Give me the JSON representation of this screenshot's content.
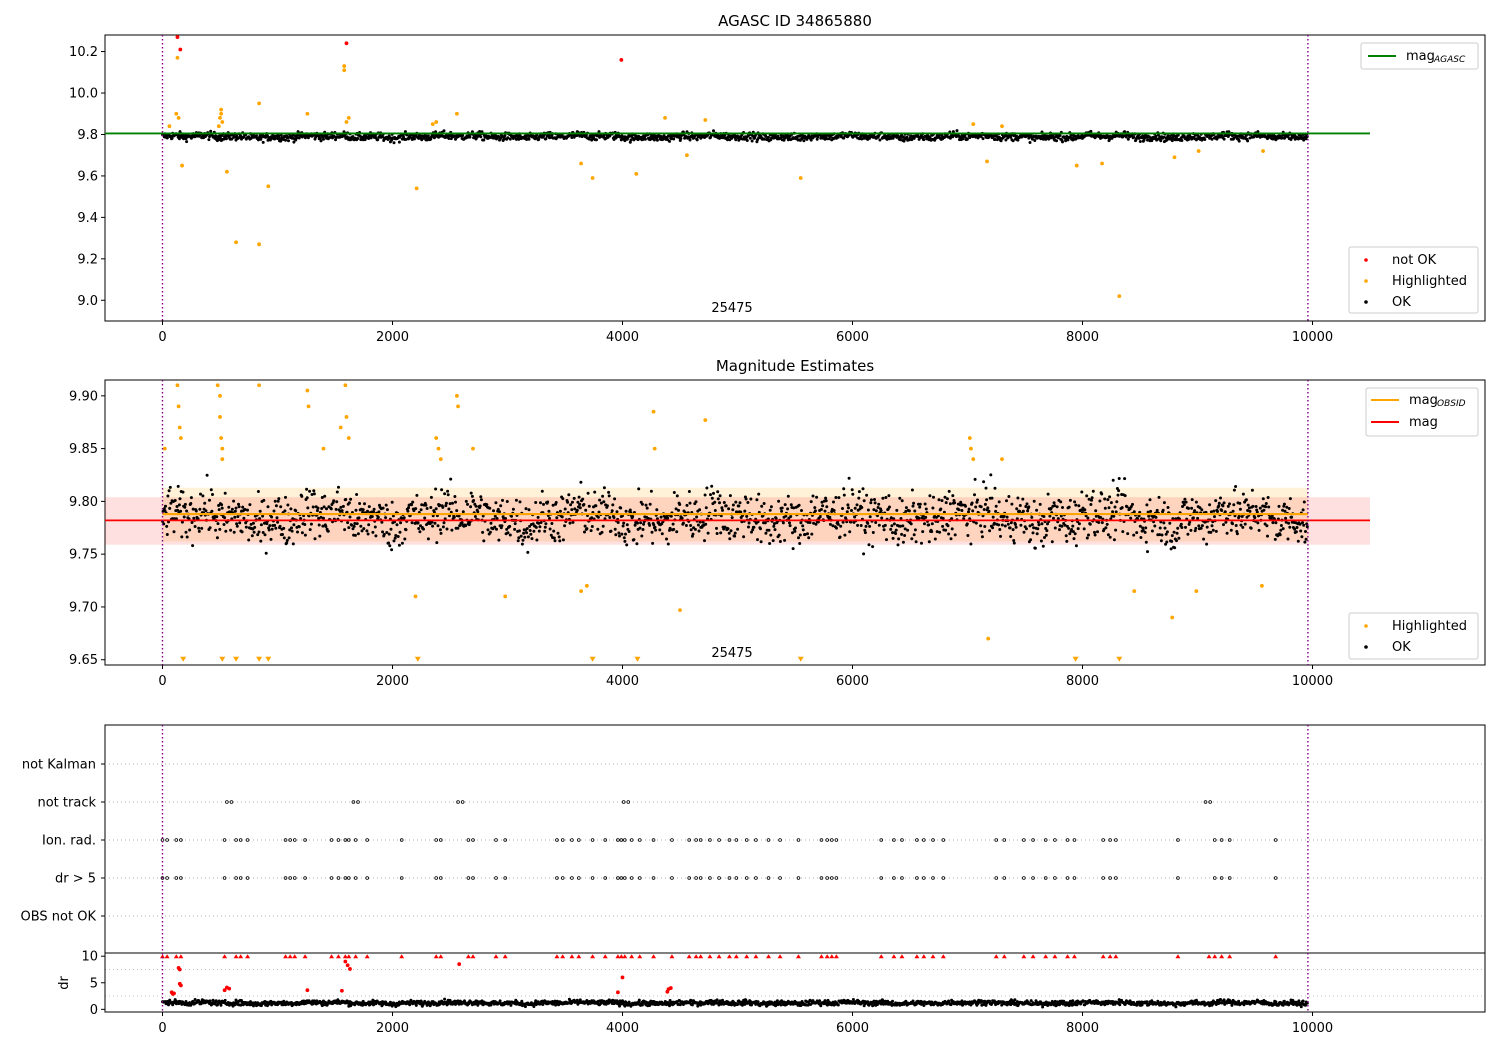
{
  "chart_data": [
    {
      "type": "scatter",
      "title": "AGASC ID 34865880",
      "xlim": [
        -500,
        11500
      ],
      "ylim": [
        8.9,
        10.28
      ],
      "xticks": [
        0,
        2000,
        4000,
        6000,
        8000,
        10000
      ],
      "yticks": [
        9.0,
        9.2,
        9.4,
        9.6,
        9.8,
        10.0,
        10.2
      ],
      "ytick_labels": [
        "9.0",
        "9.2",
        "9.4",
        "9.6",
        "9.8",
        "10.0",
        "10.2"
      ],
      "vlines": [
        0,
        9960
      ],
      "annotation": {
        "text": "25475",
        "x": 5000,
        "y": 8.95
      },
      "lines": [
        {
          "name": "mag",
          "subscript": "AGASC",
          "color": "#008000",
          "x": [
            -500,
            10500
          ],
          "y": [
            9.805,
            9.805
          ]
        }
      ],
      "series": [
        {
          "name": "not OK",
          "color": "#ff0000",
          "points": [
            [
              130,
              10.27
            ],
            [
              155,
              10.21
            ],
            [
              1600,
              10.24
            ],
            [
              3990,
              10.16
            ]
          ]
        },
        {
          "name": "Highlighted",
          "color": "#ffa500",
          "points": [
            [
              130,
              10.17
            ],
            [
              170,
              9.65
            ],
            [
              560,
              9.62
            ],
            [
              640,
              9.28
            ],
            [
              840,
              9.27
            ],
            [
              840,
              9.95
            ],
            [
              920,
              9.55
            ],
            [
              1260,
              9.9
            ],
            [
              1580,
              10.13
            ],
            [
              1580,
              10.11
            ],
            [
              2210,
              9.54
            ],
            [
              2560,
              9.9
            ],
            [
              3640,
              9.66
            ],
            [
              3740,
              9.59
            ],
            [
              4120,
              9.61
            ],
            [
              4560,
              9.7
            ],
            [
              5550,
              9.59
            ],
            [
              7170,
              9.67
            ],
            [
              7950,
              9.65
            ],
            [
              8170,
              9.66
            ],
            [
              8320,
              9.02
            ],
            [
              8800,
              9.69
            ],
            [
              9010,
              9.72
            ],
            [
              9570,
              9.72
            ],
            [
              510,
              9.92
            ],
            [
              510,
              9.9
            ],
            [
              500,
              9.88
            ],
            [
              520,
              9.86
            ],
            [
              490,
              9.84
            ],
            [
              120,
              9.9
            ],
            [
              140,
              9.88
            ],
            [
              4370,
              9.88
            ],
            [
              2350,
              9.85
            ],
            [
              2380,
              9.86
            ],
            [
              7050,
              9.85
            ],
            [
              7300,
              9.84
            ],
            [
              4720,
              9.87
            ],
            [
              60,
              9.84
            ],
            [
              1600,
              9.86
            ],
            [
              1620,
              9.88
            ]
          ]
        },
        {
          "name": "OK",
          "color": "#000000",
          "band": {
            "x_start": 0,
            "x_end": 9960,
            "center": 9.79,
            "noise": 0.018
          }
        }
      ],
      "legend": [
        "not OK",
        "Highlighted",
        "OK"
      ],
      "legend_position": "lower right",
      "line_legend_position": "upper right"
    },
    {
      "type": "scatter",
      "title": "Magnitude Estimates",
      "xlim": [
        -500,
        11500
      ],
      "ylim": [
        9.645,
        9.915
      ],
      "xticks": [
        0,
        2000,
        4000,
        6000,
        8000,
        10000
      ],
      "yticks": [
        9.65,
        9.7,
        9.75,
        9.8,
        9.85,
        9.9
      ],
      "ytick_labels": [
        "9.65",
        "9.70",
        "9.75",
        "9.80",
        "9.85",
        "9.90"
      ],
      "vlines": [
        0,
        9960
      ],
      "annotation": {
        "text": "25475",
        "x": 5000,
        "y": 9.657
      },
      "bands": [
        {
          "color": "#ffa500",
          "opacity": 0.15,
          "x": [
            0,
            9960
          ],
          "y": [
            9.762,
            9.813
          ]
        },
        {
          "color": "#ff0000",
          "opacity": 0.12,
          "x": [
            -500,
            10500
          ],
          "y": [
            9.759,
            9.804
          ]
        }
      ],
      "lines": [
        {
          "name": "mag",
          "subscript": "OBSID",
          "color": "#ffa500",
          "x": [
            0,
            9960
          ],
          "y": [
            9.788,
            9.788
          ]
        },
        {
          "name": "mag",
          "subscript": "",
          "color": "#ff0000",
          "x": [
            -500,
            10500
          ],
          "y": [
            9.782,
            9.782
          ]
        }
      ],
      "series": [
        {
          "name": "Highlighted",
          "color": "#ffa500",
          "points": [
            [
              20,
              9.85
            ],
            [
              130,
              9.91
            ],
            [
              140,
              9.89
            ],
            [
              150,
              9.87
            ],
            [
              160,
              9.86
            ],
            [
              480,
              9.91
            ],
            [
              500,
              9.9
            ],
            [
              500,
              9.88
            ],
            [
              510,
              9.86
            ],
            [
              520,
              9.85
            ],
            [
              520,
              9.84
            ],
            [
              840,
              9.91
            ],
            [
              1260,
              9.905
            ],
            [
              1270,
              9.89
            ],
            [
              1590,
              9.91
            ],
            [
              1600,
              9.88
            ],
            [
              1620,
              9.86
            ],
            [
              1400,
              9.85
            ],
            [
              1550,
              9.87
            ],
            [
              2200,
              9.71
            ],
            [
              2380,
              9.86
            ],
            [
              2400,
              9.85
            ],
            [
              2420,
              9.84
            ],
            [
              2560,
              9.9
            ],
            [
              2570,
              9.89
            ],
            [
              2700,
              9.85
            ],
            [
              2980,
              9.71
            ],
            [
              3640,
              9.715
            ],
            [
              3690,
              9.72
            ],
            [
              4270,
              9.885
            ],
            [
              4280,
              9.85
            ],
            [
              4500,
              9.697
            ],
            [
              4720,
              9.877
            ],
            [
              7020,
              9.86
            ],
            [
              7030,
              9.85
            ],
            [
              7050,
              9.84
            ],
            [
              7180,
              9.67
            ],
            [
              7300,
              9.84
            ],
            [
              8450,
              9.715
            ],
            [
              8780,
              9.69
            ],
            [
              8990,
              9.715
            ],
            [
              9560,
              9.72
            ]
          ]
        },
        {
          "name": "OK",
          "color": "#000000",
          "band": {
            "x_start": 0,
            "x_end": 9960,
            "center": 9.785,
            "noise": 0.022
          }
        }
      ],
      "markers_bottom": {
        "color": "#ffa500",
        "y": 9.65,
        "x": [
          180,
          520,
          640,
          840,
          920,
          2220,
          3740,
          4130,
          5550,
          7940,
          8320
        ]
      },
      "legend": [
        "Highlighted",
        "OK"
      ],
      "legend_position": "lower right",
      "line_legend_position": "upper right"
    },
    {
      "type": "scatter",
      "title": "",
      "xlim": [
        -500,
        11500
      ],
      "categories": [
        "not Kalman",
        "not track",
        "Ion. rad.",
        "dr > 5",
        "OBS not OK"
      ],
      "vlines": [
        0,
        9960
      ],
      "flag_x": {
        "not track": [
          560,
          600,
          1660,
          1700,
          2570,
          2610,
          4010,
          4050,
          9070,
          9110
        ],
        "Ion. rad.": [
          0,
          40,
          120,
          160,
          540,
          640,
          680,
          740,
          1070,
          1110,
          1150,
          1240,
          1470,
          1530,
          1590,
          1620,
          1680,
          1780,
          2080,
          2380,
          2420,
          2660,
          2700,
          2900,
          2980,
          3430,
          3480,
          3560,
          3620,
          3740,
          3850,
          3960,
          3990,
          4020,
          4080,
          4150,
          4270,
          4430,
          4580,
          4640,
          4680,
          4760,
          4840,
          4930,
          4990,
          5080,
          5160,
          5270,
          5370,
          5530,
          5730,
          5780,
          5820,
          5860,
          6250,
          6360,
          6430,
          6560,
          6620,
          6700,
          6790,
          7250,
          7320,
          7490,
          7570,
          7680,
          7760,
          7870,
          7930,
          8180,
          8240,
          8290,
          8830,
          9150,
          9210,
          9280,
          9680
        ],
        "dr > 5": [
          0,
          40,
          120,
          160,
          540,
          640,
          680,
          740,
          1070,
          1110,
          1150,
          1240,
          1470,
          1530,
          1590,
          1620,
          1680,
          1780,
          2080,
          2380,
          2420,
          2660,
          2700,
          2900,
          2980,
          3430,
          3480,
          3560,
          3620,
          3740,
          3850,
          3960,
          3990,
          4020,
          4080,
          4150,
          4270,
          4430,
          4580,
          4640,
          4680,
          4760,
          4840,
          4930,
          4990,
          5080,
          5160,
          5270,
          5370,
          5530,
          5730,
          5780,
          5820,
          5860,
          6250,
          6360,
          6430,
          6560,
          6620,
          6700,
          6790,
          7250,
          7320,
          7490,
          7570,
          7680,
          7760,
          7870,
          7930,
          8180,
          8240,
          8290,
          8830,
          9150,
          9210,
          9280,
          9680
        ]
      }
    },
    {
      "type": "scatter",
      "title": "",
      "xlim": [
        -500,
        11500
      ],
      "ylim": [
        -0.5,
        10.6
      ],
      "xticks": [
        0,
        2000,
        4000,
        6000,
        8000,
        10000
      ],
      "yticks": [
        0,
        5,
        10
      ],
      "ytick_labels": [
        "0",
        "5",
        "10"
      ],
      "ylabel": "dr",
      "vlines": [
        0,
        9960
      ],
      "series": [
        {
          "name": "",
          "color": "#ff0000",
          "points": [
            [
              80,
              3.2
            ],
            [
              90,
              2.9
            ],
            [
              100,
              3.0
            ],
            [
              140,
              7.8
            ],
            [
              150,
              7.5
            ],
            [
              150,
              4.8
            ],
            [
              160,
              4.5
            ],
            [
              540,
              3.6
            ],
            [
              560,
              4.1
            ],
            [
              580,
              3.9
            ],
            [
              1260,
              3.6
            ],
            [
              1560,
              3.5
            ],
            [
              1590,
              9.0
            ],
            [
              1610,
              8.3
            ],
            [
              1630,
              7.6
            ],
            [
              2580,
              8.5
            ],
            [
              4000,
              6.0
            ],
            [
              3960,
              3.2
            ],
            [
              4390,
              3.3
            ],
            [
              4400,
              3.8
            ],
            [
              4420,
              4.0
            ]
          ]
        },
        {
          "name": "",
          "color": "#000000",
          "band": {
            "x_start": 0,
            "x_end": 9960,
            "center": 1.2,
            "noise": 0.45
          }
        }
      ],
      "clip_top": {
        "color": "#ff0000",
        "y": 10,
        "x": [
          0,
          40,
          120,
          160,
          540,
          640,
          680,
          740,
          1070,
          1110,
          1150,
          1240,
          1470,
          1530,
          1590,
          1620,
          1680,
          1780,
          2080,
          2380,
          2420,
          2660,
          2700,
          2900,
          2980,
          3430,
          3480,
          3560,
          3620,
          3740,
          3850,
          3960,
          3990,
          4020,
          4080,
          4150,
          4270,
          4430,
          4580,
          4640,
          4680,
          4760,
          4840,
          4930,
          4990,
          5080,
          5160,
          5270,
          5370,
          5530,
          5730,
          5780,
          5820,
          5860,
          6250,
          6360,
          6430,
          6560,
          6620,
          6700,
          6790,
          7250,
          7320,
          7490,
          7570,
          7680,
          7760,
          7870,
          7930,
          8180,
          8240,
          8290,
          8830,
          9100,
          9150,
          9210,
          9280,
          9680
        ]
      }
    }
  ]
}
